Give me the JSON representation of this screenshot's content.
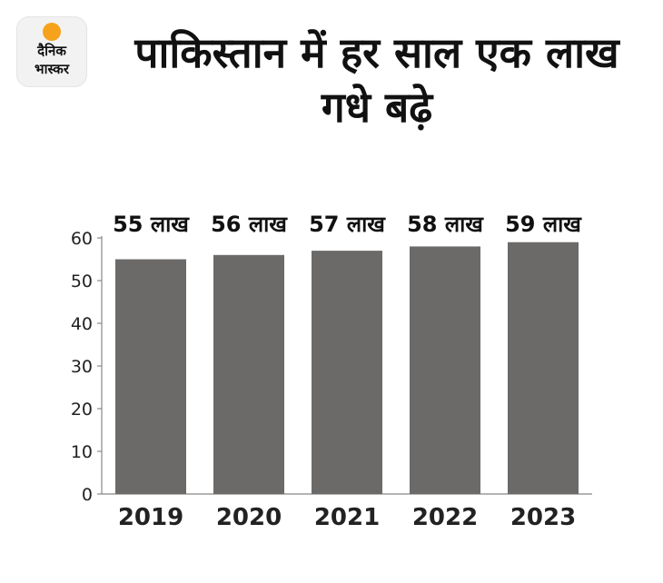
{
  "brand": {
    "line1": "दैनिक",
    "line2": "भास्कर"
  },
  "title": "पाकिस्तान में हर साल एक लाख गधे बढ़े",
  "colors": {
    "bar": "#6b6a69",
    "logo_sun": "#f7a21b"
  },
  "chart_data": {
    "type": "bar",
    "title": "पाकिस्तान में हर साल एक लाख गधे बढ़े",
    "categories": [
      "2019",
      "2020",
      "2021",
      "2022",
      "2023"
    ],
    "values": [
      55,
      56,
      57,
      58,
      59
    ],
    "data_labels": [
      "55 लाख",
      "56 लाख",
      "57 लाख",
      "58 लाख",
      "59 लाख"
    ],
    "yticks": [
      0,
      10,
      20,
      30,
      40,
      50,
      60
    ],
    "ylim": [
      0,
      60
    ],
    "xlabel": "",
    "ylabel": "",
    "grid": false
  }
}
